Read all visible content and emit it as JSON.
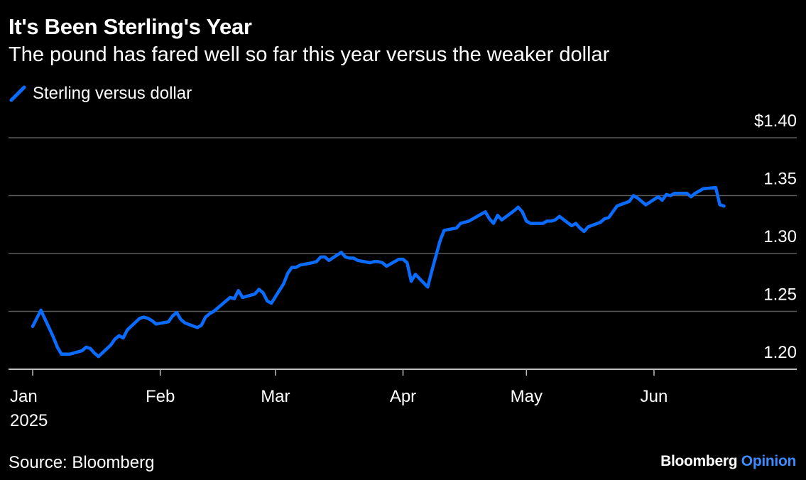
{
  "header": {
    "title": "It's Been Sterling's Year",
    "subtitle": "The pound has fared well so far this year versus the weaker dollar"
  },
  "footer": {
    "source": "Source: Bloomberg",
    "brand_name": "Bloomberg",
    "brand_section": "Opinion"
  },
  "colors": {
    "line": "#0a6cff",
    "grid": "#5a5a5a",
    "background": "#000000",
    "text": "#ffffff"
  },
  "chart_data": {
    "type": "line",
    "title": "It's Been Sterling's Year",
    "subtitle": "The pound has fared well so far this year versus the weaker dollar",
    "legend": [
      "Sterling versus dollar"
    ],
    "legend_position": "top-left",
    "grid": true,
    "ylim": [
      1.2,
      1.4
    ],
    "yticks": [
      1.2,
      1.25,
      1.3,
      1.35,
      1.4
    ],
    "ytick_labels": [
      "1.20",
      "1.25",
      "1.30",
      "1.35",
      "$1.40"
    ],
    "xlim": [
      "2025-01-01",
      "2025-06-30"
    ],
    "xticks": [
      "2025-01-01",
      "2025-02-01",
      "2025-03-01",
      "2025-04-01",
      "2025-05-01",
      "2025-06-01"
    ],
    "xtick_labels": [
      "Jan",
      "Feb",
      "Mar",
      "Apr",
      "May",
      "Jun"
    ],
    "xtick_year": "2025",
    "series": [
      {
        "name": "Sterling versus dollar",
        "x": [
          "2025-01-01",
          "2025-01-03",
          "2025-01-06",
          "2025-01-07",
          "2025-01-08",
          "2025-01-09",
          "2025-01-10",
          "2025-01-13",
          "2025-01-14",
          "2025-01-15",
          "2025-01-16",
          "2025-01-17",
          "2025-01-20",
          "2025-01-21",
          "2025-01-22",
          "2025-01-23",
          "2025-01-24",
          "2025-01-27",
          "2025-01-28",
          "2025-01-29",
          "2025-01-30",
          "2025-01-31",
          "2025-02-03",
          "2025-02-04",
          "2025-02-05",
          "2025-02-06",
          "2025-02-07",
          "2025-02-10",
          "2025-02-11",
          "2025-02-12",
          "2025-02-13",
          "2025-02-14",
          "2025-02-17",
          "2025-02-18",
          "2025-02-19",
          "2025-02-20",
          "2025-02-21",
          "2025-02-24",
          "2025-02-25",
          "2025-02-26",
          "2025-02-27",
          "2025-02-28",
          "2025-03-03",
          "2025-03-04",
          "2025-03-05",
          "2025-03-06",
          "2025-03-07",
          "2025-03-10",
          "2025-03-11",
          "2025-03-12",
          "2025-03-13",
          "2025-03-14",
          "2025-03-17",
          "2025-03-18",
          "2025-03-19",
          "2025-03-20",
          "2025-03-21",
          "2025-03-24",
          "2025-03-25",
          "2025-03-26",
          "2025-03-27",
          "2025-03-28",
          "2025-03-31",
          "2025-04-01",
          "2025-04-02",
          "2025-04-03",
          "2025-04-04",
          "2025-04-07",
          "2025-04-08",
          "2025-04-09",
          "2025-04-10",
          "2025-04-11",
          "2025-04-14",
          "2025-04-15",
          "2025-04-16",
          "2025-04-17",
          "2025-04-21",
          "2025-04-22",
          "2025-04-23",
          "2025-04-24",
          "2025-04-25",
          "2025-04-28",
          "2025-04-29",
          "2025-04-30",
          "2025-05-01",
          "2025-05-02",
          "2025-05-05",
          "2025-05-06",
          "2025-05-07",
          "2025-05-08",
          "2025-05-09",
          "2025-05-12",
          "2025-05-13",
          "2025-05-14",
          "2025-05-15",
          "2025-05-16",
          "2025-05-19",
          "2025-05-20",
          "2025-05-21",
          "2025-05-22",
          "2025-05-23",
          "2025-05-26",
          "2025-05-27",
          "2025-05-28",
          "2025-05-29",
          "2025-05-30",
          "2025-06-02",
          "2025-06-03",
          "2025-06-04",
          "2025-06-05",
          "2025-06-06",
          "2025-06-09",
          "2025-06-10",
          "2025-06-11",
          "2025-06-12",
          "2025-06-13",
          "2025-06-16",
          "2025-06-17",
          "2025-06-18"
        ],
        "values": [
          1.237,
          1.251,
          1.228,
          1.219,
          1.213,
          1.213,
          1.213,
          1.216,
          1.219,
          1.218,
          1.214,
          1.211,
          1.221,
          1.226,
          1.229,
          1.227,
          1.234,
          1.244,
          1.245,
          1.244,
          1.242,
          1.239,
          1.241,
          1.246,
          1.249,
          1.243,
          1.24,
          1.236,
          1.238,
          1.245,
          1.248,
          1.25,
          1.259,
          1.262,
          1.261,
          1.268,
          1.262,
          1.265,
          1.269,
          1.266,
          1.259,
          1.257,
          1.274,
          1.283,
          1.288,
          1.288,
          1.29,
          1.292,
          1.293,
          1.297,
          1.297,
          1.294,
          1.301,
          1.297,
          1.296,
          1.296,
          1.294,
          1.292,
          1.293,
          1.293,
          1.292,
          1.289,
          1.295,
          1.295,
          1.292,
          1.276,
          1.282,
          1.271,
          1.285,
          1.298,
          1.311,
          1.32,
          1.322,
          1.326,
          1.327,
          1.328,
          1.336,
          1.33,
          1.326,
          1.333,
          1.329,
          1.337,
          1.34,
          1.336,
          1.328,
          1.326,
          1.326,
          1.328,
          1.328,
          1.329,
          1.332,
          1.324,
          1.326,
          1.322,
          1.319,
          1.323,
          1.327,
          1.33,
          1.331,
          1.336,
          1.341,
          1.345,
          1.35,
          1.348,
          1.345,
          1.342,
          1.349,
          1.346,
          1.351,
          1.35,
          1.352,
          1.352,
          1.349,
          1.352,
          1.354,
          1.356,
          1.357,
          1.342,
          1.341
        ]
      }
    ]
  }
}
